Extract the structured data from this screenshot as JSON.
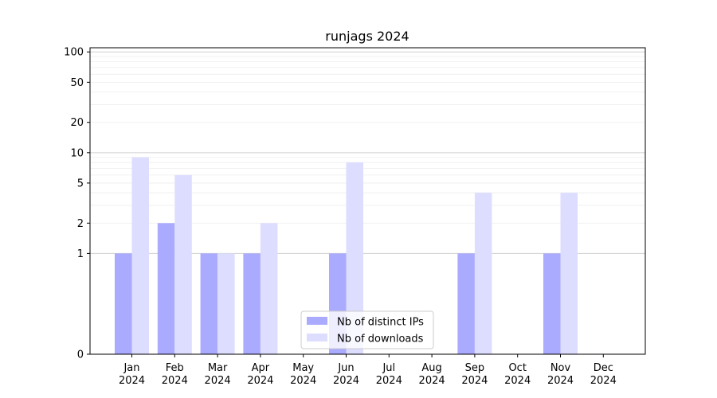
{
  "chart_data": {
    "type": "bar",
    "title": "runjags 2024",
    "xlabel": "",
    "ylabel": "",
    "y_scale": "symlog",
    "ylim": [
      0,
      110
    ],
    "y_ticks": [
      0,
      1,
      2,
      5,
      10,
      20,
      50,
      100
    ],
    "grid": true,
    "legend_placement": "bottom-center",
    "categories": [
      {
        "month": "Jan",
        "year": "2024"
      },
      {
        "month": "Feb",
        "year": "2024"
      },
      {
        "month": "Mar",
        "year": "2024"
      },
      {
        "month": "Apr",
        "year": "2024"
      },
      {
        "month": "May",
        "year": "2024"
      },
      {
        "month": "Jun",
        "year": "2024"
      },
      {
        "month": "Jul",
        "year": "2024"
      },
      {
        "month": "Aug",
        "year": "2024"
      },
      {
        "month": "Sep",
        "year": "2024"
      },
      {
        "month": "Oct",
        "year": "2024"
      },
      {
        "month": "Nov",
        "year": "2024"
      },
      {
        "month": "Dec",
        "year": "2024"
      }
    ],
    "series": [
      {
        "name": "Nb of distinct IPs",
        "color": "#aaaaff",
        "values": [
          1,
          2,
          1,
          1,
          0,
          1,
          0,
          0,
          1,
          0,
          1,
          0
        ]
      },
      {
        "name": "Nb of downloads",
        "color": "#ddddff",
        "values": [
          9,
          6,
          1,
          2,
          0,
          8,
          0,
          0,
          4,
          0,
          4,
          0
        ]
      }
    ]
  }
}
